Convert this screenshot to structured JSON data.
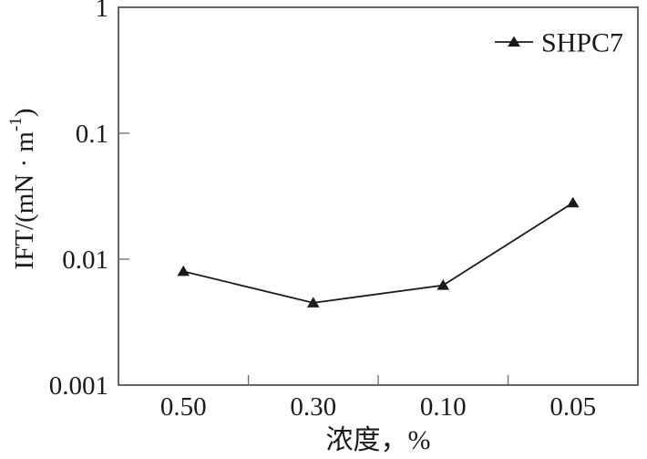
{
  "figure": {
    "background": "#ffffff",
    "text_color": "#1a1a1a",
    "frame_color": "#3f3f3f",
    "tick_color": "#6a6a6a",
    "series_color": "#1a1a1a"
  },
  "chart_data": {
    "type": "line",
    "title": "",
    "x_categories": [
      "0.50",
      "0.30",
      "0.10",
      "0.05"
    ],
    "series": [
      {
        "name": "SHPC7",
        "marker": "filled-triangle-up-icon",
        "values": [
          0.008,
          0.0045,
          0.0062,
          0.028
        ]
      }
    ],
    "xlabel": "浓度，%",
    "ylabel": "IFT/(mN · m⁻¹)",
    "ylabel_parts": {
      "prefix": "IFT/(mN · m",
      "superscript": "-1",
      "suffix": ")"
    },
    "y_scale": "log",
    "ylim": [
      0.001,
      1
    ],
    "y_ticks": [
      "1",
      "0.1",
      "0.01",
      "0.001"
    ],
    "x_axis_direction": "decreasing-concentration",
    "grid": false,
    "legend_position": "top-right-inside"
  }
}
